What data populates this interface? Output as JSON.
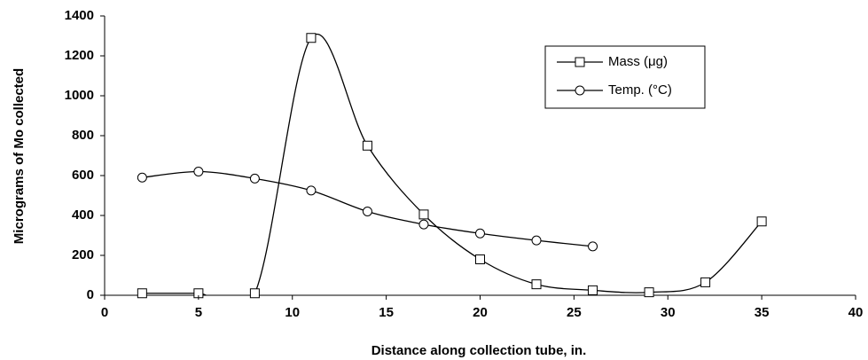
{
  "chart_data": {
    "type": "line",
    "xlabel": "Distance along collection tube, in.",
    "ylabel": "Micrograms of Mo collected",
    "series": [
      {
        "name": "Mass (μg)",
        "marker": "square",
        "color": "#000000",
        "x": [
          2,
          5,
          8,
          11,
          14,
          17,
          20,
          23,
          26,
          29,
          32,
          35
        ],
        "values": [
          10,
          10,
          10,
          1290,
          750,
          405,
          180,
          55,
          25,
          15,
          65,
          370
        ]
      },
      {
        "name": "Temp. (°C)",
        "marker": "circle",
        "color": "#000000",
        "x": [
          2,
          5,
          8,
          11,
          14,
          17,
          20,
          23,
          26
        ],
        "values": [
          590,
          620,
          585,
          525,
          420,
          355,
          310,
          275,
          245
        ]
      }
    ],
    "xlim": [
      0,
      40
    ],
    "xticks": [
      0,
      5,
      10,
      15,
      20,
      25,
      30,
      35,
      40
    ],
    "ylim": [
      0,
      1400
    ],
    "yticks": [
      0,
      200,
      400,
      600,
      800,
      1000,
      1200,
      1400
    ],
    "smooth": true,
    "grid": false,
    "legend": "upper right"
  }
}
